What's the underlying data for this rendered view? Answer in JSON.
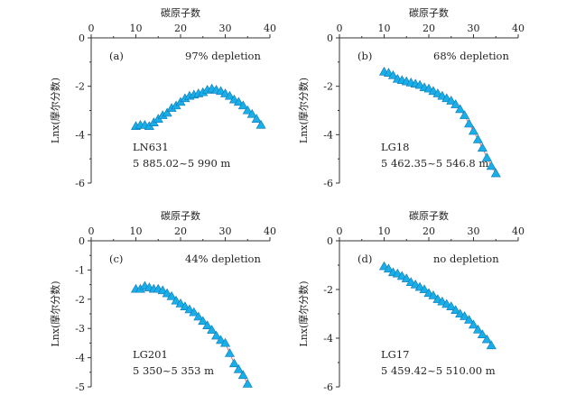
{
  "chart_data": [
    {
      "type": "scatter",
      "panel": "(a)",
      "title": "碳原子数",
      "ylabel": "Lnx(摩尔分数)",
      "annotation": "97% depletion",
      "well": "LN631",
      "depth": "5 885.02~5 990 m",
      "xlim": [
        0,
        40
      ],
      "ylim": [
        -6,
        0
      ],
      "xticks": [
        0,
        10,
        20,
        30,
        40
      ],
      "yticks": [
        0,
        -2,
        -4,
        -6
      ],
      "x": [
        10,
        11,
        12,
        13,
        14,
        15,
        16,
        17,
        18,
        19,
        20,
        21,
        22,
        23,
        24,
        25,
        26,
        27,
        28,
        29,
        30,
        31,
        32,
        33,
        34,
        35,
        36,
        37,
        38
      ],
      "y": [
        -3.65,
        -3.6,
        -3.6,
        -3.65,
        -3.5,
        -3.35,
        -3.2,
        -3.1,
        -2.9,
        -2.8,
        -2.65,
        -2.5,
        -2.4,
        -2.35,
        -2.3,
        -2.25,
        -2.15,
        -2.1,
        -2.15,
        -2.2,
        -2.3,
        -2.4,
        -2.55,
        -2.65,
        -2.8,
        -3.0,
        -3.15,
        -3.35,
        -3.6
      ]
    },
    {
      "type": "scatter",
      "panel": "(b)",
      "title": "碳原子数",
      "ylabel": "Lnx(摩尔分数)",
      "annotation": "68% depletion",
      "well": "LG18",
      "depth": "5 462.35~5 546.8 m",
      "xlim": [
        0,
        40
      ],
      "ylim": [
        -6,
        0
      ],
      "xticks": [
        0,
        10,
        20,
        30,
        40
      ],
      "yticks": [
        0,
        -2,
        -4,
        -6
      ],
      "x": [
        10,
        11,
        12,
        13,
        14,
        15,
        16,
        17,
        18,
        19,
        20,
        21,
        22,
        23,
        24,
        25,
        26,
        27,
        28,
        29,
        30,
        31,
        32,
        33,
        34,
        35
      ],
      "y": [
        -1.4,
        -1.45,
        -1.55,
        -1.7,
        -1.75,
        -1.8,
        -1.85,
        -1.9,
        -1.95,
        -2.05,
        -2.1,
        -2.2,
        -2.3,
        -2.4,
        -2.5,
        -2.6,
        -2.75,
        -2.95,
        -3.2,
        -3.55,
        -3.85,
        -4.2,
        -4.55,
        -4.95,
        -5.3,
        -5.6
      ]
    },
    {
      "type": "scatter",
      "panel": "(c)",
      "title": "碳原子数",
      "ylabel": "Lnx(摩尔分数)",
      "annotation": "44% depletion",
      "well": "LG201",
      "depth": "5 350~5 353 m",
      "xlim": [
        0,
        40
      ],
      "ylim": [
        -5,
        0
      ],
      "xticks": [
        0,
        10,
        20,
        30,
        40
      ],
      "yticks": [
        0,
        -1,
        -2,
        -3,
        -4,
        -5
      ],
      "x": [
        10,
        11,
        12,
        13,
        14,
        15,
        16,
        17,
        18,
        19,
        20,
        21,
        22,
        23,
        24,
        25,
        26,
        27,
        28,
        29,
        30,
        31,
        32,
        33,
        34,
        35
      ],
      "y": [
        -1.65,
        -1.65,
        -1.55,
        -1.6,
        -1.65,
        -1.65,
        -1.7,
        -1.8,
        -1.9,
        -2.05,
        -2.15,
        -2.25,
        -2.35,
        -2.45,
        -2.6,
        -2.75,
        -2.9,
        -3.05,
        -3.25,
        -3.4,
        -3.5,
        -3.85,
        -4.2,
        -4.4,
        -4.6,
        -4.9
      ]
    },
    {
      "type": "scatter",
      "panel": "(d)",
      "title": "碳原子数",
      "ylabel": "Lnx(摩尔分数)",
      "annotation": "no depletion",
      "well": "LG17",
      "depth": "5 459.42~5 510.00 m",
      "xlim": [
        0,
        40
      ],
      "ylim": [
        -6,
        0
      ],
      "xticks": [
        0,
        10,
        20,
        30,
        40
      ],
      "yticks": [
        0,
        -2,
        -4,
        -6
      ],
      "x": [
        10,
        11,
        12,
        13,
        14,
        15,
        16,
        17,
        18,
        19,
        20,
        21,
        22,
        23,
        24,
        25,
        26,
        27,
        28,
        29,
        30,
        31,
        32,
        33,
        34
      ],
      "y": [
        -1.05,
        -1.15,
        -1.3,
        -1.35,
        -1.45,
        -1.55,
        -1.7,
        -1.8,
        -1.9,
        -2.0,
        -2.15,
        -2.25,
        -2.4,
        -2.5,
        -2.6,
        -2.7,
        -2.85,
        -3.0,
        -3.1,
        -3.25,
        -3.45,
        -3.65,
        -3.85,
        -4.05,
        -4.3
      ]
    }
  ],
  "colors": {
    "marker": "#1aaee8",
    "marker_edge": "#0b79b5",
    "trend": "#e05a4f",
    "axis": "#333333"
  }
}
